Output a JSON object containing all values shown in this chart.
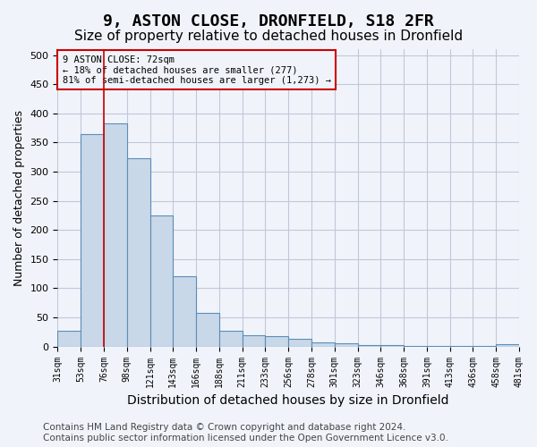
{
  "title": "9, ASTON CLOSE, DRONFIELD, S18 2FR",
  "subtitle": "Size of property relative to detached houses in Dronfield",
  "xlabel": "Distribution of detached houses by size in Dronfield",
  "ylabel": "Number of detached properties",
  "bin_labels": [
    "31sqm",
    "53sqm",
    "76sqm",
    "98sqm",
    "121sqm",
    "143sqm",
    "166sqm",
    "188sqm",
    "211sqm",
    "233sqm",
    "256sqm",
    "278sqm",
    "301sqm",
    "323sqm",
    "346sqm",
    "368sqm",
    "391sqm",
    "413sqm",
    "436sqm",
    "458sqm",
    "481sqm"
  ],
  "bar_heights": [
    27,
    365,
    383,
    323,
    225,
    120,
    58,
    27,
    20,
    18,
    14,
    7,
    5,
    2,
    2,
    1,
    1,
    1,
    1,
    4
  ],
  "bar_color": "#c8d8e8",
  "bar_edge_color": "#5b8db8",
  "grid_color": "#c0c8d8",
  "ylim": [
    0,
    510
  ],
  "yticks": [
    0,
    50,
    100,
    150,
    200,
    250,
    300,
    350,
    400,
    450,
    500
  ],
  "annotation_box_text": "9 ASTON CLOSE: 72sqm\n← 18% of detached houses are smaller (277)\n81% of semi-detached houses are larger (1,273) →",
  "annotation_box_color": "#cc0000",
  "footer_text": "Contains HM Land Registry data © Crown copyright and database right 2024.\nContains public sector information licensed under the Open Government Licence v3.0.",
  "background_color": "#f0f4fa",
  "title_fontsize": 13,
  "subtitle_fontsize": 11,
  "xlabel_fontsize": 10,
  "ylabel_fontsize": 9,
  "footer_fontsize": 7.5
}
